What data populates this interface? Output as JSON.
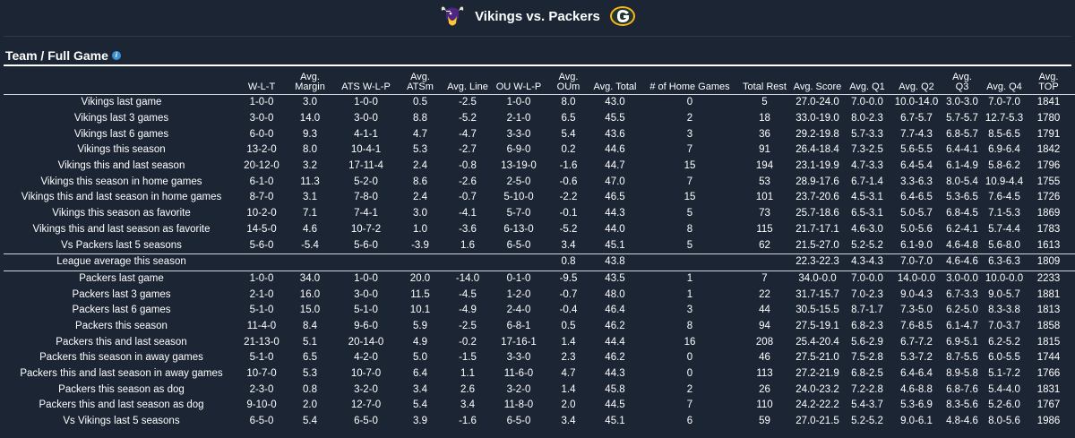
{
  "matchup": {
    "title": "Vikings vs. Packers"
  },
  "section": {
    "title": "Team / Full Game"
  },
  "colors": {
    "background": "#1b2534",
    "packers_green": "#203731",
    "packers_gold": "#ffb612",
    "vikings_purple": "#4f2683"
  },
  "columns": [
    "",
    "W-L-T",
    "Avg. Margin",
    "ATS W-L-P",
    "Avg. ATSm",
    "Avg. Line",
    "OU W-L-P",
    "Avg. OUm",
    "Avg. Total",
    "# of Home Games",
    "Total Rest",
    "Avg. Score",
    "Avg. Q1",
    "Avg. Q2",
    "Avg. Q3",
    "Avg. Q4",
    "Avg. TOP",
    "Avg. TO"
  ],
  "vikings_rows": [
    [
      "Vikings last game",
      "1-0-0",
      "3.0",
      "1-0-0",
      "0.5",
      "-2.5",
      "1-0-0",
      "8.0",
      "43.0",
      "0",
      "5",
      "27.0-24.0",
      "7.0-0.0",
      "10.0-14.0",
      "3.0-3.0",
      "7.0-7.0",
      "1841",
      "0.0-2.0"
    ],
    [
      "Vikings last 3 games",
      "3-0-0",
      "14.0",
      "3-0-0",
      "8.8",
      "-5.2",
      "2-1-0",
      "6.5",
      "45.5",
      "2",
      "18",
      "33.0-19.0",
      "8.0-2.3",
      "6.7-5.7",
      "5.7-5.7",
      "12.7-5.3",
      "1780",
      "0.3-2.0"
    ],
    [
      "Vikings last 6 games",
      "6-0-0",
      "9.3",
      "4-1-1",
      "4.7",
      "-4.7",
      "3-3-0",
      "5.4",
      "43.6",
      "3",
      "36",
      "29.2-19.8",
      "5.7-3.3",
      "7.7-4.3",
      "6.8-5.7",
      "8.5-6.5",
      "1791",
      "0.7-1.7"
    ],
    [
      "Vikings this season",
      "13-2-0",
      "8.0",
      "10-4-1",
      "5.3",
      "-2.7",
      "6-9-0",
      "0.2",
      "44.6",
      "7",
      "91",
      "26.4-18.4",
      "7.3-2.5",
      "5.6-5.5",
      "6.4-4.1",
      "6.9-6.4",
      "1842",
      "1.3-2.0"
    ],
    [
      "Vikings this and last season",
      "20-12-0",
      "3.2",
      "17-11-4",
      "2.4",
      "-0.8",
      "13-19-0",
      "-1.6",
      "44.7",
      "15",
      "194",
      "23.1-19.9",
      "4.7-3.3",
      "6.4-5.4",
      "6.1-4.9",
      "5.8-6.2",
      "1796",
      "1.7-1.6"
    ],
    [
      "Vikings this season in home games",
      "6-1-0",
      "11.3",
      "5-2-0",
      "8.6",
      "-2.6",
      "2-5-0",
      "-0.6",
      "47.0",
      "7",
      "53",
      "28.9-17.6",
      "6.7-1.4",
      "3.3-6.3",
      "8.0-5.4",
      "10.9-4.4",
      "1755",
      "1.1-1.9"
    ],
    [
      "Vikings this and last season in home games",
      "8-7-0",
      "3.1",
      "7-8-0",
      "2.4",
      "-0.7",
      "5-10-0",
      "-2.2",
      "46.5",
      "15",
      "101",
      "23.7-20.6",
      "4.5-3.1",
      "6.4-6.5",
      "5.3-6.5",
      "7.6-4.5",
      "1726",
      "1.7-1.5"
    ],
    [
      "Vikings this season as favorite",
      "10-2-0",
      "7.1",
      "7-4-1",
      "3.0",
      "-4.1",
      "5-7-0",
      "-0.1",
      "44.3",
      "5",
      "73",
      "25.7-18.6",
      "6.5-3.1",
      "5.0-5.7",
      "6.8-4.5",
      "7.1-5.3",
      "1869",
      "1.3-1.8"
    ],
    [
      "Vikings this and last season as favorite",
      "14-5-0",
      "4.6",
      "10-7-2",
      "1.0",
      "-3.6",
      "6-13-0",
      "-5.2",
      "44.0",
      "8",
      "115",
      "21.7-17.1",
      "4.6-3.0",
      "5.0-5.6",
      "6.2-4.1",
      "5.7-4.4",
      "1783",
      "1.5-1.7"
    ],
    [
      "Vs Packers last 5 seasons",
      "5-6-0",
      "-5.4",
      "5-6-0",
      "-3.9",
      "1.6",
      "6-5-0",
      "3.4",
      "45.1",
      "5",
      "62",
      "21.5-27.0",
      "5.2-5.2",
      "6.1-9.0",
      "4.6-4.8",
      "5.6-8.0",
      "1613",
      "1.5-1.3"
    ]
  ],
  "league_row": [
    "League average this season",
    "",
    "",
    "",
    "",
    "",
    "",
    "0.8",
    "43.8",
    "",
    "",
    "22.3-22.3",
    "4.3-4.3",
    "7.0-7.0",
    "4.6-4.6",
    "6.3-6.3",
    "1809",
    "1.3-1.3"
  ],
  "packers_rows": [
    [
      "Packers last game",
      "1-0-0",
      "34.0",
      "1-0-0",
      "20.0",
      "-14.0",
      "0-1-0",
      "-9.5",
      "43.5",
      "1",
      "7",
      "34.0-0.0",
      "7.0-0.0",
      "14.0-0.0",
      "3.0-0.0",
      "10.0-0.0",
      "2233",
      "0.0-2.0"
    ],
    [
      "Packers last 3 games",
      "2-1-0",
      "16.0",
      "3-0-0",
      "11.5",
      "-4.5",
      "1-2-0",
      "-0.7",
      "48.0",
      "1",
      "22",
      "31.7-15.7",
      "7.0-2.3",
      "9.0-4.3",
      "6.7-3.3",
      "9.0-5.7",
      "1881",
      "0.7-1.7"
    ],
    [
      "Packers last 6 games",
      "5-1-0",
      "15.0",
      "5-1-0",
      "10.1",
      "-4.9",
      "2-4-0",
      "-0.4",
      "46.4",
      "3",
      "44",
      "30.5-15.5",
      "8.7-1.7",
      "7.3-5.0",
      "6.2-5.0",
      "8.3-3.8",
      "1813",
      "0.5-1.5"
    ],
    [
      "Packers this season",
      "11-4-0",
      "8.4",
      "9-6-0",
      "5.9",
      "-2.5",
      "6-8-1",
      "0.5",
      "46.2",
      "8",
      "94",
      "27.5-19.1",
      "6.8-2.3",
      "7.6-8.5",
      "6.1-4.7",
      "7.0-3.7",
      "1858",
      "1.1-1.9"
    ],
    [
      "Packers this and last season",
      "21-13-0",
      "5.1",
      "20-14-0",
      "4.9",
      "-0.2",
      "17-16-1",
      "1.4",
      "44.4",
      "16",
      "208",
      "25.4-20.4",
      "5.6-2.9",
      "6.7-7.2",
      "6.9-5.1",
      "6.2-5.2",
      "1815",
      "1.1-1.4"
    ],
    [
      "Packers this season in away games",
      "5-1-0",
      "6.5",
      "4-2-0",
      "5.0",
      "-1.5",
      "3-3-0",
      "2.3",
      "46.2",
      "0",
      "46",
      "27.5-21.0",
      "7.5-2.8",
      "5.3-7.2",
      "8.7-5.5",
      "6.0-5.5",
      "1744",
      "0.8-1.7"
    ],
    [
      "Packers this and last season in away games",
      "10-7-0",
      "5.3",
      "10-7-0",
      "6.4",
      "1.1",
      "11-6-0",
      "4.7",
      "44.3",
      "0",
      "113",
      "27.2-21.9",
      "6.8-2.5",
      "6.4-6.4",
      "8.9-5.8",
      "5.1-7.2",
      "1766",
      "1.0-1.4"
    ],
    [
      "Packers this season as dog",
      "2-3-0",
      "0.8",
      "3-2-0",
      "3.4",
      "2.6",
      "3-2-0",
      "1.4",
      "45.8",
      "2",
      "26",
      "24.0-23.2",
      "7.2-2.8",
      "4.6-8.8",
      "6.8-7.6",
      "5.4-4.0",
      "1831",
      "0.8-2.0"
    ],
    [
      "Packers this and last season as dog",
      "9-10-0",
      "2.0",
      "12-7-0",
      "5.4",
      "3.4",
      "11-8-0",
      "2.0",
      "44.5",
      "7",
      "110",
      "24.2-22.2",
      "5.4-3.7",
      "5.3-6.9",
      "8.3-5.6",
      "5.2-6.0",
      "1767",
      "0.9-1.3"
    ],
    [
      "Vs Vikings last 5 seasons",
      "6-5-0",
      "5.4",
      "6-5-0",
      "3.9",
      "-1.6",
      "6-5-0",
      "3.4",
      "45.1",
      "6",
      "59",
      "27.0-21.5",
      "5.2-5.2",
      "9.0-6.1",
      "4.8-4.6",
      "8.0-5.6",
      "1986",
      "1.3-1.5"
    ]
  ]
}
